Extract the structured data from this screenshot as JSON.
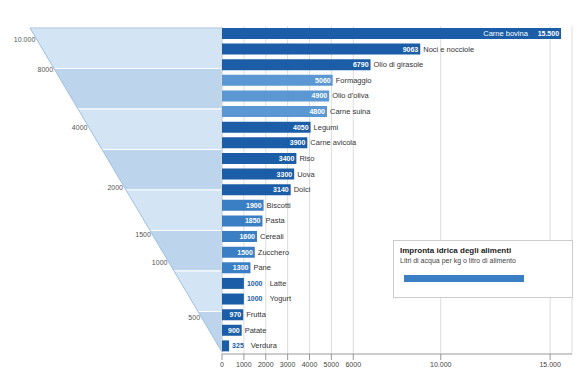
{
  "chart_data": {
    "type": "bar",
    "orientation": "horizontal",
    "title": "Impronta idrica degli alimenti",
    "subtitle": "Litri di acqua per kg o litro di alimento",
    "categories": [
      "Carne bovina",
      "Noci e nocciole",
      "Olio di girasole",
      "Formaggio",
      "Olio d'oliva",
      "Carne suina",
      "Legumi",
      "Carne avicola",
      "Riso",
      "Uova",
      "Dolci",
      "Biscotti",
      "Pasta",
      "Cereali",
      "Zucchero",
      "Pane",
      "Latte",
      "Yogurt",
      "Frutta",
      "Patate",
      "Verdura"
    ],
    "values": [
      15500,
      9063,
      6790,
      5060,
      4900,
      4800,
      4050,
      3900,
      3400,
      3300,
      3140,
      1900,
      1850,
      1600,
      1500,
      1300,
      1000,
      1000,
      970,
      900,
      325
    ],
    "value_labels": [
      "15.500",
      "9063",
      "6790",
      "5060",
      "4900",
      "4800",
      "4050",
      "3900",
      "3400",
      "3300",
      "3140",
      "1900",
      "1850",
      "1600",
      "1500",
      "1300",
      "1000",
      "1000",
      "970",
      "900",
      "325"
    ],
    "colors": [
      "#1b5da6",
      "#1b5da6",
      "#1b5da6",
      "#5b97d2",
      "#5b97d2",
      "#5b97d2",
      "#1b5da6",
      "#1b5da6",
      "#1b5da6",
      "#1b5da6",
      "#1b5da6",
      "#3a7fc4",
      "#3a7fc4",
      "#3a7fc4",
      "#3a7fc4",
      "#3a7fc4",
      "#1b5da6",
      "#1b5da6",
      "#1b5da6",
      "#1b5da6",
      "#1b5da6"
    ],
    "xlim": [
      0,
      16000
    ],
    "xticks": [
      0,
      1000,
      2000,
      3000,
      4000,
      5000,
      6000,
      {
        "value": 10000,
        "label": "10.000"
      },
      {
        "value": 15000,
        "label": "15.000"
      }
    ],
    "grid": true,
    "data_labels": true,
    "tick_labels": "x",
    "annotations": [
      "10.000",
      "8000",
      "4000",
      "2000",
      "1500",
      "1000",
      "500"
    ]
  }
}
